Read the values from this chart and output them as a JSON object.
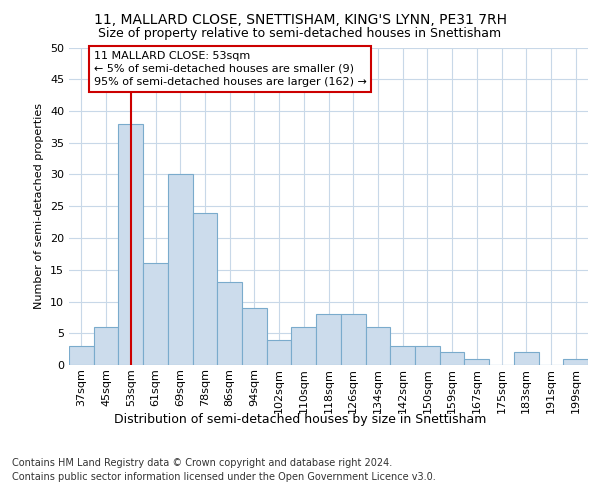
{
  "title1": "11, MALLARD CLOSE, SNETTISHAM, KING'S LYNN, PE31 7RH",
  "title2": "Size of property relative to semi-detached houses in Snettisham",
  "xlabel": "Distribution of semi-detached houses by size in Snettisham",
  "ylabel": "Number of semi-detached properties",
  "categories": [
    "37sqm",
    "45sqm",
    "53sqm",
    "61sqm",
    "69sqm",
    "78sqm",
    "86sqm",
    "94sqm",
    "102sqm",
    "110sqm",
    "118sqm",
    "126sqm",
    "134sqm",
    "142sqm",
    "150sqm",
    "159sqm",
    "167sqm",
    "175sqm",
    "183sqm",
    "191sqm",
    "199sqm"
  ],
  "values": [
    3,
    6,
    38,
    16,
    30,
    24,
    13,
    9,
    4,
    6,
    8,
    8,
    6,
    3,
    3,
    2,
    1,
    0,
    2,
    0,
    1
  ],
  "bar_color": "#ccdcec",
  "bar_edge_color": "#7aabcc",
  "highlight_index": 2,
  "highlight_color": "#cc0000",
  "annotation_text": "11 MALLARD CLOSE: 53sqm\n← 5% of semi-detached houses are smaller (9)\n95% of semi-detached houses are larger (162) →",
  "annotation_box_color": "#ffffff",
  "annotation_box_edge": "#cc0000",
  "ylim": [
    0,
    50
  ],
  "yticks": [
    0,
    5,
    10,
    15,
    20,
    25,
    30,
    35,
    40,
    45,
    50
  ],
  "footer1": "Contains HM Land Registry data © Crown copyright and database right 2024.",
  "footer2": "Contains public sector information licensed under the Open Government Licence v3.0.",
  "bg_color": "#ffffff",
  "plot_bg_color": "#ffffff",
  "grid_color": "#c8d8e8",
  "title1_fontsize": 10,
  "title2_fontsize": 9,
  "xlabel_fontsize": 9,
  "ylabel_fontsize": 8,
  "tick_fontsize": 8,
  "footer_fontsize": 7,
  "ann_fontsize": 8
}
